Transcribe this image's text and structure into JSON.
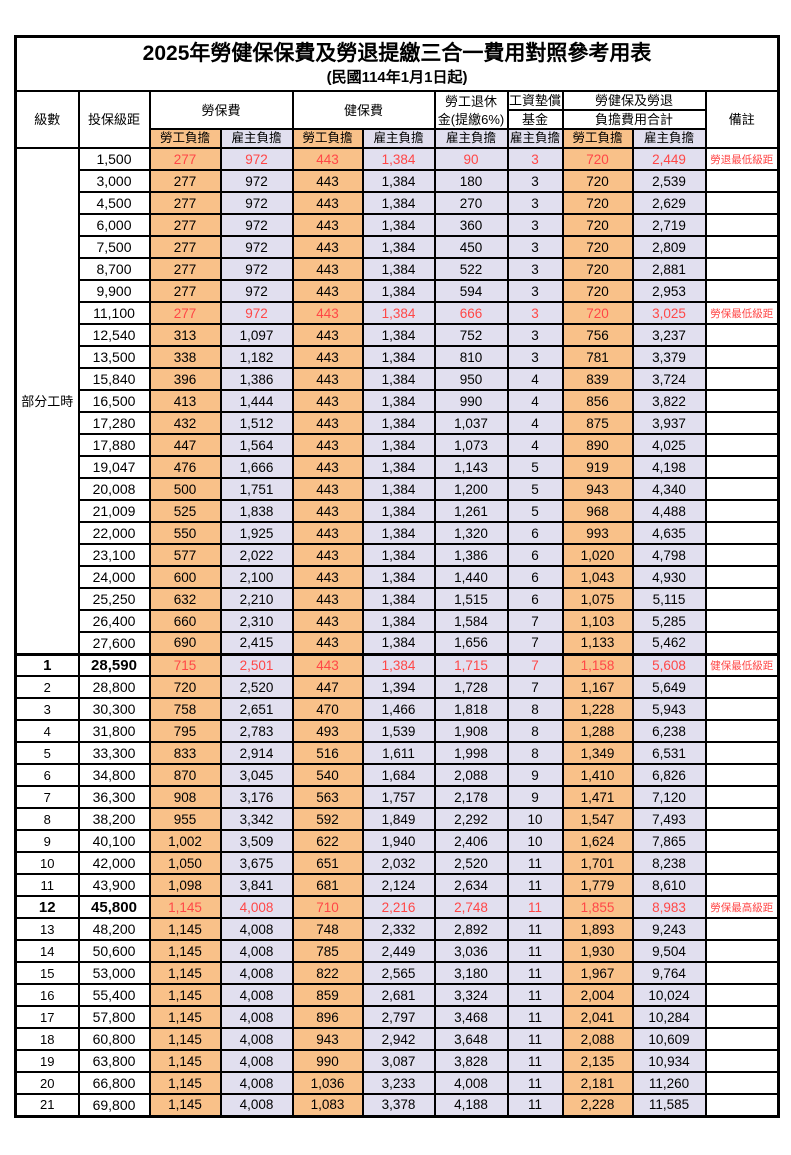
{
  "title": "2025年勞健保保費及勞退提繳三合一費用對照參考用表",
  "subtitle": "(民國114年1月1日起)",
  "columns": {
    "level": "級數",
    "salary": "投保級距",
    "labor": "勞保費",
    "health": "健保費",
    "pension_line1": "勞工退休",
    "pension_line2": "金(提繳6%)",
    "fund_line1": "工資墊償",
    "fund_line2": "基金",
    "total_line1": "勞健保及勞退",
    "total_line2": "負擔費用合計",
    "note": "備註",
    "employee_share": "勞工負擔",
    "employer_share": "雇主負擔"
  },
  "part_time_label": "部分工時",
  "colors": {
    "employee_bg": "#F9C189",
    "employer_bg": "#E1DFEF",
    "highlight_text": "#FF4747",
    "border": "#000000"
  },
  "rows": [
    {
      "level": "",
      "salary": "1,500",
      "values": [
        "277",
        "972",
        "443",
        "1,384",
        "90",
        "3",
        "720",
        "2,449"
      ],
      "note": "勞退最低級距",
      "red": true,
      "bold": false
    },
    {
      "level": "",
      "salary": "3,000",
      "values": [
        "277",
        "972",
        "443",
        "1,384",
        "180",
        "3",
        "720",
        "2,539"
      ],
      "note": "",
      "red": false,
      "bold": false
    },
    {
      "level": "",
      "salary": "4,500",
      "values": [
        "277",
        "972",
        "443",
        "1,384",
        "270",
        "3",
        "720",
        "2,629"
      ],
      "note": "",
      "red": false,
      "bold": false
    },
    {
      "level": "",
      "salary": "6,000",
      "values": [
        "277",
        "972",
        "443",
        "1,384",
        "360",
        "3",
        "720",
        "2,719"
      ],
      "note": "",
      "red": false,
      "bold": false
    },
    {
      "level": "",
      "salary": "7,500",
      "values": [
        "277",
        "972",
        "443",
        "1,384",
        "450",
        "3",
        "720",
        "2,809"
      ],
      "note": "",
      "red": false,
      "bold": false
    },
    {
      "level": "",
      "salary": "8,700",
      "values": [
        "277",
        "972",
        "443",
        "1,384",
        "522",
        "3",
        "720",
        "2,881"
      ],
      "note": "",
      "red": false,
      "bold": false
    },
    {
      "level": "",
      "salary": "9,900",
      "values": [
        "277",
        "972",
        "443",
        "1,384",
        "594",
        "3",
        "720",
        "2,953"
      ],
      "note": "",
      "red": false,
      "bold": false
    },
    {
      "level": "",
      "salary": "11,100",
      "values": [
        "277",
        "972",
        "443",
        "1,384",
        "666",
        "3",
        "720",
        "3,025"
      ],
      "note": "勞保最低級距",
      "red": true,
      "bold": false
    },
    {
      "level": "",
      "salary": "12,540",
      "values": [
        "313",
        "1,097",
        "443",
        "1,384",
        "752",
        "3",
        "756",
        "3,237"
      ],
      "note": "",
      "red": false,
      "bold": false
    },
    {
      "level": "",
      "salary": "13,500",
      "values": [
        "338",
        "1,182",
        "443",
        "1,384",
        "810",
        "3",
        "781",
        "3,379"
      ],
      "note": "",
      "red": false,
      "bold": false
    },
    {
      "level": "",
      "salary": "15,840",
      "values": [
        "396",
        "1,386",
        "443",
        "1,384",
        "950",
        "4",
        "839",
        "3,724"
      ],
      "note": "",
      "red": false,
      "bold": false
    },
    {
      "level": "",
      "salary": "16,500",
      "values": [
        "413",
        "1,444",
        "443",
        "1,384",
        "990",
        "4",
        "856",
        "3,822"
      ],
      "note": "",
      "red": false,
      "bold": false
    },
    {
      "level": "",
      "salary": "17,280",
      "values": [
        "432",
        "1,512",
        "443",
        "1,384",
        "1,037",
        "4",
        "875",
        "3,937"
      ],
      "note": "",
      "red": false,
      "bold": false
    },
    {
      "level": "",
      "salary": "17,880",
      "values": [
        "447",
        "1,564",
        "443",
        "1,384",
        "1,073",
        "4",
        "890",
        "4,025"
      ],
      "note": "",
      "red": false,
      "bold": false
    },
    {
      "level": "",
      "salary": "19,047",
      "values": [
        "476",
        "1,666",
        "443",
        "1,384",
        "1,143",
        "5",
        "919",
        "4,198"
      ],
      "note": "",
      "red": false,
      "bold": false
    },
    {
      "level": "",
      "salary": "20,008",
      "values": [
        "500",
        "1,751",
        "443",
        "1,384",
        "1,200",
        "5",
        "943",
        "4,340"
      ],
      "note": "",
      "red": false,
      "bold": false
    },
    {
      "level": "",
      "salary": "21,009",
      "values": [
        "525",
        "1,838",
        "443",
        "1,384",
        "1,261",
        "5",
        "968",
        "4,488"
      ],
      "note": "",
      "red": false,
      "bold": false
    },
    {
      "level": "",
      "salary": "22,000",
      "values": [
        "550",
        "1,925",
        "443",
        "1,384",
        "1,320",
        "6",
        "993",
        "4,635"
      ],
      "note": "",
      "red": false,
      "bold": false
    },
    {
      "level": "",
      "salary": "23,100",
      "values": [
        "577",
        "2,022",
        "443",
        "1,384",
        "1,386",
        "6",
        "1,020",
        "4,798"
      ],
      "note": "",
      "red": false,
      "bold": false
    },
    {
      "level": "",
      "salary": "24,000",
      "values": [
        "600",
        "2,100",
        "443",
        "1,384",
        "1,440",
        "6",
        "1,043",
        "4,930"
      ],
      "note": "",
      "red": false,
      "bold": false
    },
    {
      "level": "",
      "salary": "25,250",
      "values": [
        "632",
        "2,210",
        "443",
        "1,384",
        "1,515",
        "6",
        "1,075",
        "5,115"
      ],
      "note": "",
      "red": false,
      "bold": false
    },
    {
      "level": "",
      "salary": "26,400",
      "values": [
        "660",
        "2,310",
        "443",
        "1,384",
        "1,584",
        "7",
        "1,103",
        "5,285"
      ],
      "note": "",
      "red": false,
      "bold": false
    },
    {
      "level": "",
      "salary": "27,600",
      "values": [
        "690",
        "2,415",
        "443",
        "1,384",
        "1,656",
        "7",
        "1,133",
        "5,462"
      ],
      "note": "",
      "red": false,
      "bold": false
    },
    {
      "level": "1",
      "salary": "28,590",
      "values": [
        "715",
        "2,501",
        "443",
        "1,384",
        "1,715",
        "7",
        "1,158",
        "5,608"
      ],
      "note": "健保最低級距",
      "red": true,
      "bold": true
    },
    {
      "level": "2",
      "salary": "28,800",
      "values": [
        "720",
        "2,520",
        "447",
        "1,394",
        "1,728",
        "7",
        "1,167",
        "5,649"
      ],
      "note": "",
      "red": false,
      "bold": false
    },
    {
      "level": "3",
      "salary": "30,300",
      "values": [
        "758",
        "2,651",
        "470",
        "1,466",
        "1,818",
        "8",
        "1,228",
        "5,943"
      ],
      "note": "",
      "red": false,
      "bold": false
    },
    {
      "level": "4",
      "salary": "31,800",
      "values": [
        "795",
        "2,783",
        "493",
        "1,539",
        "1,908",
        "8",
        "1,288",
        "6,238"
      ],
      "note": "",
      "red": false,
      "bold": false
    },
    {
      "level": "5",
      "salary": "33,300",
      "values": [
        "833",
        "2,914",
        "516",
        "1,611",
        "1,998",
        "8",
        "1,349",
        "6,531"
      ],
      "note": "",
      "red": false,
      "bold": false
    },
    {
      "level": "6",
      "salary": "34,800",
      "values": [
        "870",
        "3,045",
        "540",
        "1,684",
        "2,088",
        "9",
        "1,410",
        "6,826"
      ],
      "note": "",
      "red": false,
      "bold": false
    },
    {
      "level": "7",
      "salary": "36,300",
      "values": [
        "908",
        "3,176",
        "563",
        "1,757",
        "2,178",
        "9",
        "1,471",
        "7,120"
      ],
      "note": "",
      "red": false,
      "bold": false
    },
    {
      "level": "8",
      "salary": "38,200",
      "values": [
        "955",
        "3,342",
        "592",
        "1,849",
        "2,292",
        "10",
        "1,547",
        "7,493"
      ],
      "note": "",
      "red": false,
      "bold": false
    },
    {
      "level": "9",
      "salary": "40,100",
      "values": [
        "1,002",
        "3,509",
        "622",
        "1,940",
        "2,406",
        "10",
        "1,624",
        "7,865"
      ],
      "note": "",
      "red": false,
      "bold": false
    },
    {
      "level": "10",
      "salary": "42,000",
      "values": [
        "1,050",
        "3,675",
        "651",
        "2,032",
        "2,520",
        "11",
        "1,701",
        "8,238"
      ],
      "note": "",
      "red": false,
      "bold": false
    },
    {
      "level": "11",
      "salary": "43,900",
      "values": [
        "1,098",
        "3,841",
        "681",
        "2,124",
        "2,634",
        "11",
        "1,779",
        "8,610"
      ],
      "note": "",
      "red": false,
      "bold": false
    },
    {
      "level": "12",
      "salary": "45,800",
      "values": [
        "1,145",
        "4,008",
        "710",
        "2,216",
        "2,748",
        "11",
        "1,855",
        "8,983"
      ],
      "note": "勞保最高級距",
      "red": true,
      "bold": true
    },
    {
      "level": "13",
      "salary": "48,200",
      "values": [
        "1,145",
        "4,008",
        "748",
        "2,332",
        "2,892",
        "11",
        "1,893",
        "9,243"
      ],
      "note": "",
      "red": false,
      "bold": false
    },
    {
      "level": "14",
      "salary": "50,600",
      "values": [
        "1,145",
        "4,008",
        "785",
        "2,449",
        "3,036",
        "11",
        "1,930",
        "9,504"
      ],
      "note": "",
      "red": false,
      "bold": false
    },
    {
      "level": "15",
      "salary": "53,000",
      "values": [
        "1,145",
        "4,008",
        "822",
        "2,565",
        "3,180",
        "11",
        "1,967",
        "9,764"
      ],
      "note": "",
      "red": false,
      "bold": false
    },
    {
      "level": "16",
      "salary": "55,400",
      "values": [
        "1,145",
        "4,008",
        "859",
        "2,681",
        "3,324",
        "11",
        "2,004",
        "10,024"
      ],
      "note": "",
      "red": false,
      "bold": false
    },
    {
      "level": "17",
      "salary": "57,800",
      "values": [
        "1,145",
        "4,008",
        "896",
        "2,797",
        "3,468",
        "11",
        "2,041",
        "10,284"
      ],
      "note": "",
      "red": false,
      "bold": false
    },
    {
      "level": "18",
      "salary": "60,800",
      "values": [
        "1,145",
        "4,008",
        "943",
        "2,942",
        "3,648",
        "11",
        "2,088",
        "10,609"
      ],
      "note": "",
      "red": false,
      "bold": false
    },
    {
      "level": "19",
      "salary": "63,800",
      "values": [
        "1,145",
        "4,008",
        "990",
        "3,087",
        "3,828",
        "11",
        "2,135",
        "10,934"
      ],
      "note": "",
      "red": false,
      "bold": false
    },
    {
      "level": "20",
      "salary": "66,800",
      "values": [
        "1,145",
        "4,008",
        "1,036",
        "3,233",
        "4,008",
        "11",
        "2,181",
        "11,260"
      ],
      "note": "",
      "red": false,
      "bold": false
    },
    {
      "level": "21",
      "salary": "69,800",
      "values": [
        "1,145",
        "4,008",
        "1,083",
        "3,378",
        "4,188",
        "11",
        "2,228",
        "11,585"
      ],
      "note": "",
      "red": false,
      "bold": false
    }
  ]
}
